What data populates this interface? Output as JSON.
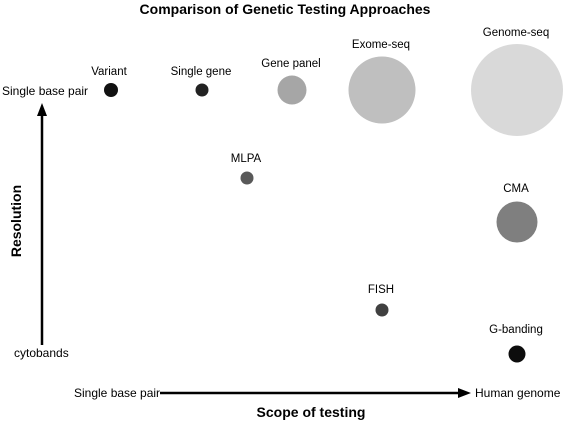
{
  "title": "Comparison of Genetic Testing Approaches",
  "x_axis": {
    "title": "Scope of testing",
    "start_label": "Single base pair",
    "end_label": "Human genome"
  },
  "y_axis": {
    "title": "Resolution",
    "top_label": "Single base pair",
    "bottom_label": "cytobands"
  },
  "methods": [
    {
      "name": "Variant",
      "color": "#111111"
    },
    {
      "name": "Single gene",
      "color": "#222222"
    },
    {
      "name": "Gene panel",
      "color": "#a6a6a6"
    },
    {
      "name": "Exome-seq",
      "color": "#bfbfbf"
    },
    {
      "name": "Genome-seq",
      "color": "#d9d9d9"
    },
    {
      "name": "MLPA",
      "color": "#595959"
    },
    {
      "name": "CMA",
      "color": "#7f7f7f"
    },
    {
      "name": "FISH",
      "color": "#404040"
    },
    {
      "name": "G-banding",
      "color": "#0d0d0d"
    }
  ]
}
